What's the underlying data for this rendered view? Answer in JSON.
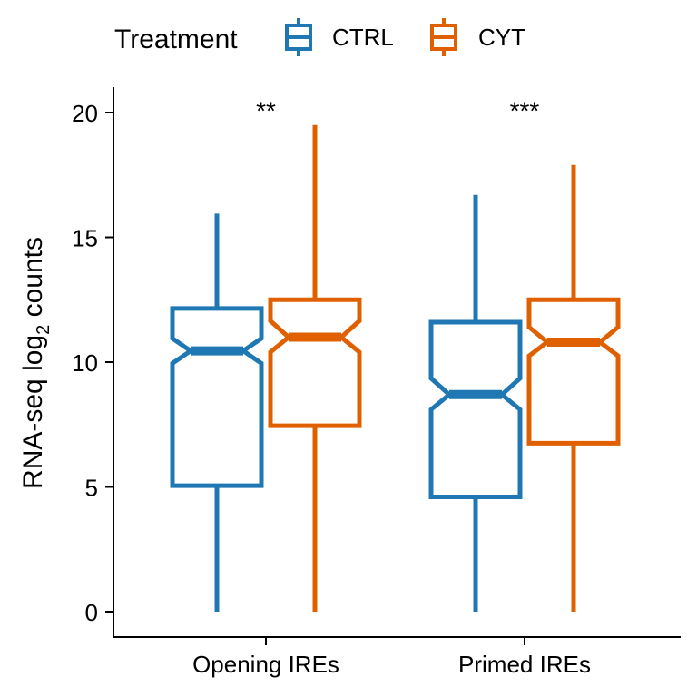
{
  "legend": {
    "title": "Treatment",
    "entries": [
      {
        "name": "CTRL",
        "color": "#1f78b4"
      },
      {
        "name": "CYT",
        "color": "#e06000"
      }
    ]
  },
  "chart_data": {
    "type": "boxplot",
    "notched": true,
    "title": "",
    "xlabel": "",
    "ylabel": "RNA-seq log",
    "ylabel_subscript": "2",
    "ylabel_suffix": " counts",
    "ylim": [
      -1,
      21
    ],
    "yticks": [
      0,
      5,
      10,
      15,
      20
    ],
    "grid": false,
    "legend_position": "top",
    "categories": [
      "Opening IREs",
      "Primed IREs"
    ],
    "series": [
      {
        "name": "CTRL",
        "color": "#1f78b4",
        "boxes": [
          {
            "category": "Opening IREs",
            "min": 0,
            "q1": 5.05,
            "median": 10.45,
            "q3": 12.15,
            "max": 15.95,
            "notch_low": 9.95,
            "notch_high": 10.95
          },
          {
            "category": "Primed IREs",
            "min": 0,
            "q1": 4.6,
            "median": 8.7,
            "q3": 11.6,
            "max": 16.7,
            "notch_low": 8.1,
            "notch_high": 9.35
          }
        ]
      },
      {
        "name": "CYT",
        "color": "#e06000",
        "boxes": [
          {
            "category": "Opening IREs",
            "min": 0,
            "q1": 7.45,
            "median": 11.0,
            "q3": 12.5,
            "max": 19.5,
            "notch_low": 10.4,
            "notch_high": 11.65
          },
          {
            "category": "Primed IREs",
            "min": 0,
            "q1": 6.75,
            "median": 10.8,
            "q3": 12.5,
            "max": 17.9,
            "notch_low": 10.25,
            "notch_high": 11.4
          }
        ]
      }
    ],
    "annotations": [
      {
        "category": "Opening IREs",
        "text": "**",
        "y": 20.1
      },
      {
        "category": "Primed IREs",
        "text": "***",
        "y": 20.1
      }
    ]
  }
}
